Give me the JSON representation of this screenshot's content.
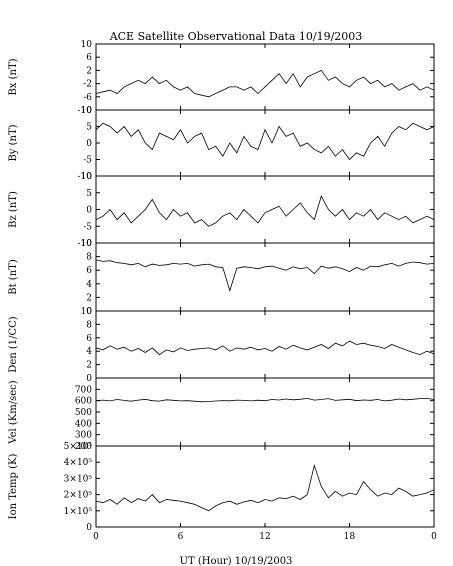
{
  "title": "ACE Satellite Observational Data   10/19/2003",
  "xlabel": "UT (Hour)   10/19/2003",
  "x_ticks": [
    "0",
    "6",
    "12",
    "18",
    "0"
  ],
  "trace_color": "#000000",
  "chart_data": [
    {
      "type": "line",
      "ylabel": "Bx (nT)",
      "ylim": [
        -10,
        10
      ],
      "yticks": [
        {
          "v": 10,
          "label": "10"
        },
        {
          "v": 6,
          "label": "6"
        },
        {
          "v": 2,
          "label": "2"
        },
        {
          "v": -2,
          "label": "-2"
        },
        {
          "v": -6,
          "label": "-6"
        },
        {
          "v": -10,
          "label": "-10"
        }
      ],
      "hours": [
        0,
        0.5,
        1,
        1.5,
        2,
        2.5,
        3,
        3.5,
        4,
        4.5,
        5,
        5.5,
        6,
        6.5,
        7,
        7.5,
        8,
        8.5,
        9,
        9.5,
        10,
        10.5,
        11,
        11.5,
        12,
        12.5,
        13,
        13.5,
        14,
        14.5,
        15,
        15.5,
        16,
        16.5,
        17,
        17.5,
        18,
        18.5,
        19,
        19.5,
        20,
        20.5,
        21,
        21.5,
        22,
        22.5,
        23,
        23.5,
        24
      ],
      "values": [
        -5,
        -4.5,
        -4,
        -5,
        -3,
        -2,
        -1,
        -2,
        0,
        -2,
        -1,
        -3,
        -4,
        -3,
        -5,
        -5.5,
        -6,
        -5,
        -4,
        -3,
        -3,
        -4,
        -3,
        -5,
        -3,
        -1,
        1,
        -2,
        1,
        -3,
        0,
        1,
        2,
        -1,
        0,
        -2,
        -3,
        -1,
        0,
        -2,
        -1,
        -3,
        -2,
        -4,
        -3,
        -2,
        -4,
        -3,
        -4
      ]
    },
    {
      "type": "line",
      "ylabel": "By (nT)",
      "ylim": [
        -10,
        10
      ],
      "yticks": [
        {
          "v": 10,
          "label": "10"
        },
        {
          "v": 5,
          "label": "5"
        },
        {
          "v": 0,
          "label": "0"
        },
        {
          "v": -5,
          "label": "-5"
        },
        {
          "v": -10,
          "label": "-10"
        }
      ],
      "hours": [
        0,
        0.5,
        1,
        1.5,
        2,
        2.5,
        3,
        3.5,
        4,
        4.5,
        5,
        5.5,
        6,
        6.5,
        7,
        7.5,
        8,
        8.5,
        9,
        9.5,
        10,
        10.5,
        11,
        11.5,
        12,
        12.5,
        13,
        13.5,
        14,
        14.5,
        15,
        15.5,
        16,
        16.5,
        17,
        17.5,
        18,
        18.5,
        19,
        19.5,
        20,
        20.5,
        21,
        21.5,
        22,
        22.5,
        23,
        23.5,
        24
      ],
      "values": [
        4,
        6,
        5,
        3,
        5,
        2,
        4,
        0,
        -2,
        3,
        2,
        1,
        4,
        0,
        2,
        3,
        -2,
        -1,
        -4,
        0,
        -3,
        2,
        -1,
        -2,
        4,
        0,
        5,
        2,
        3,
        -1,
        0,
        -2,
        -3,
        -1,
        -4,
        -2,
        -5,
        -3,
        -4,
        0,
        2,
        -1,
        3,
        5,
        4,
        6,
        5,
        4,
        5
      ]
    },
    {
      "type": "line",
      "ylabel": "Bz (nT)",
      "ylim": [
        -10,
        10
      ],
      "yticks": [
        {
          "v": 10,
          "label": "10"
        },
        {
          "v": 5,
          "label": "5"
        },
        {
          "v": 0,
          "label": "0"
        },
        {
          "v": -5,
          "label": "-5"
        },
        {
          "v": -10,
          "label": "-10"
        }
      ],
      "hours": [
        0,
        0.5,
        1,
        1.5,
        2,
        2.5,
        3,
        3.5,
        4,
        4.5,
        5,
        5.5,
        6,
        6.5,
        7,
        7.5,
        8,
        8.5,
        9,
        9.5,
        10,
        10.5,
        11,
        11.5,
        12,
        12.5,
        13,
        13.5,
        14,
        14.5,
        15,
        15.5,
        16,
        16.5,
        17,
        17.5,
        18,
        18.5,
        19,
        19.5,
        20,
        20.5,
        21,
        21.5,
        22,
        22.5,
        23,
        23.5,
        24
      ],
      "values": [
        -3,
        -2,
        0,
        -3,
        -1,
        -4,
        -2,
        0,
        3,
        -1,
        -3,
        0,
        -2,
        -1,
        -4,
        -3,
        -5,
        -4,
        -2,
        -1,
        -3,
        0,
        -2,
        -4,
        -1,
        0,
        1,
        -2,
        0,
        2,
        -1,
        -3,
        4,
        0,
        -2,
        0,
        -3,
        -1,
        -2,
        0,
        -3,
        -1,
        -2,
        -3,
        -2,
        -4,
        -3,
        -2,
        -3
      ]
    },
    {
      "type": "line",
      "ylabel": "Bt (nT)",
      "ylim": [
        0,
        10
      ],
      "yticks": [
        {
          "v": 10,
          "label": "10"
        },
        {
          "v": 8,
          "label": "8"
        },
        {
          "v": 6,
          "label": "6"
        },
        {
          "v": 4,
          "label": "4"
        },
        {
          "v": 2,
          "label": "2"
        },
        {
          "v": 0,
          "label": "0"
        }
      ],
      "hours": [
        0,
        0.5,
        1,
        1.5,
        2,
        2.5,
        3,
        3.5,
        4,
        4.5,
        5,
        5.5,
        6,
        6.5,
        7,
        7.5,
        8,
        8.5,
        9,
        9.5,
        10,
        10.5,
        11,
        11.5,
        12,
        12.5,
        13,
        13.5,
        14,
        14.5,
        15,
        15.5,
        16,
        16.5,
        17,
        17.5,
        18,
        18.5,
        19,
        19.5,
        20,
        20.5,
        21,
        21.5,
        22,
        22.5,
        23,
        23.5,
        24
      ],
      "values": [
        7.5,
        7.3,
        7.4,
        7.1,
        7,
        6.8,
        7,
        6.5,
        6.9,
        6.7,
        6.8,
        7,
        6.9,
        7,
        6.6,
        6.8,
        6.9,
        6.5,
        6.4,
        3,
        6.3,
        6.5,
        6.4,
        6.2,
        6.5,
        6.6,
        6.3,
        6,
        6.5,
        6.2,
        6.4,
        5.5,
        6.6,
        6.3,
        6.5,
        6.2,
        5.8,
        6.4,
        6,
        6.6,
        6.5,
        6.8,
        7,
        6.6,
        7,
        7.2,
        7.1,
        6.9,
        7
      ]
    },
    {
      "type": "line",
      "ylabel": "Den (1/CC)",
      "ylim": [
        0,
        10
      ],
      "yticks": [
        {
          "v": 10,
          "label": "10"
        },
        {
          "v": 8,
          "label": "8"
        },
        {
          "v": 6,
          "label": "6"
        },
        {
          "v": 4,
          "label": "4"
        },
        {
          "v": 2,
          "label": "2"
        },
        {
          "v": 0,
          "label": "0"
        }
      ],
      "hours": [
        0,
        0.5,
        1,
        1.5,
        2,
        2.5,
        3,
        3.5,
        4,
        4.5,
        5,
        5.5,
        6,
        6.5,
        7,
        7.5,
        8,
        8.5,
        9,
        9.5,
        10,
        10.5,
        11,
        11.5,
        12,
        12.5,
        13,
        13.5,
        14,
        14.5,
        15,
        15.5,
        16,
        16.5,
        17,
        17.5,
        18,
        18.5,
        19,
        19.5,
        20,
        20.5,
        21,
        21.5,
        22,
        22.5,
        23,
        23.5,
        24
      ],
      "values": [
        4.5,
        4.2,
        4.8,
        4.3,
        4.6,
        4,
        4.4,
        3.8,
        4.5,
        3.5,
        4.2,
        3.9,
        4.5,
        4.1,
        4.3,
        4.4,
        4.5,
        4.2,
        4.8,
        4,
        4.5,
        4.3,
        4.6,
        4.2,
        4.4,
        4,
        4.7,
        4.3,
        4.9,
        4.5,
        4.2,
        4.6,
        5,
        4.4,
        5.2,
        4.8,
        5.5,
        5,
        5.2,
        4.9,
        4.7,
        4.4,
        5,
        4.6,
        4.2,
        3.8,
        3.5,
        4,
        3.6
      ]
    },
    {
      "type": "line",
      "ylabel": "Vel (Km/sec)",
      "ylim": [
        200,
        800
      ],
      "yticks": [
        {
          "v": 700,
          "label": "700"
        },
        {
          "v": 600,
          "label": "600"
        },
        {
          "v": 500,
          "label": "500"
        },
        {
          "v": 400,
          "label": "400"
        },
        {
          "v": 300,
          "label": "300"
        },
        {
          "v": 200,
          "label": "200"
        }
      ],
      "hours": [
        0,
        0.5,
        1,
        1.5,
        2,
        2.5,
        3,
        3.5,
        4,
        4.5,
        5,
        5.5,
        6,
        6.5,
        7,
        7.5,
        8,
        8.5,
        9,
        9.5,
        10,
        10.5,
        11,
        11.5,
        12,
        12.5,
        13,
        13.5,
        14,
        14.5,
        15,
        15.5,
        16,
        16.5,
        17,
        17.5,
        18,
        18.5,
        19,
        19.5,
        20,
        20.5,
        21,
        21.5,
        22,
        22.5,
        23,
        23.5,
        24
      ],
      "values": [
        600,
        605,
        598,
        610,
        602,
        595,
        605,
        612,
        600,
        596,
        608,
        603,
        598,
        600,
        595,
        590,
        593,
        597,
        601,
        599,
        605,
        602,
        598,
        604,
        600,
        610,
        606,
        615,
        608,
        612,
        620,
        605,
        610,
        618,
        602,
        608,
        612,
        600,
        606,
        603,
        610,
        598,
        604,
        615,
        608,
        612,
        618,
        620,
        610
      ]
    },
    {
      "type": "line",
      "ylabel": "Ion Temp (K)",
      "ylim": [
        0,
        500000
      ],
      "yticks": [
        {
          "v": 500000,
          "label": "5×10⁵"
        },
        {
          "v": 400000,
          "label": "4×10⁵"
        },
        {
          "v": 300000,
          "label": "3×10⁵"
        },
        {
          "v": 200000,
          "label": "2×10⁵"
        },
        {
          "v": 100000,
          "label": "1×10⁵"
        },
        {
          "v": 0,
          "label": "0"
        }
      ],
      "hours": [
        0,
        0.5,
        1,
        1.5,
        2,
        2.5,
        3,
        3.5,
        4,
        4.5,
        5,
        5.5,
        6,
        6.5,
        7,
        7.5,
        8,
        8.5,
        9,
        9.5,
        10,
        10.5,
        11,
        11.5,
        12,
        12.5,
        13,
        13.5,
        14,
        14.5,
        15,
        15.5,
        16,
        16.5,
        17,
        17.5,
        18,
        18.5,
        19,
        19.5,
        20,
        20.5,
        21,
        21.5,
        22,
        22.5,
        23,
        23.5,
        24
      ],
      "values": [
        160000,
        150000,
        170000,
        140000,
        180000,
        150000,
        175000,
        160000,
        200000,
        150000,
        170000,
        165000,
        160000,
        150000,
        140000,
        120000,
        100000,
        130000,
        150000,
        160000,
        140000,
        155000,
        165000,
        150000,
        170000,
        160000,
        180000,
        175000,
        190000,
        170000,
        200000,
        380000,
        250000,
        180000,
        220000,
        190000,
        210000,
        200000,
        280000,
        230000,
        190000,
        210000,
        200000,
        240000,
        220000,
        190000,
        200000,
        210000,
        230000
      ]
    }
  ]
}
